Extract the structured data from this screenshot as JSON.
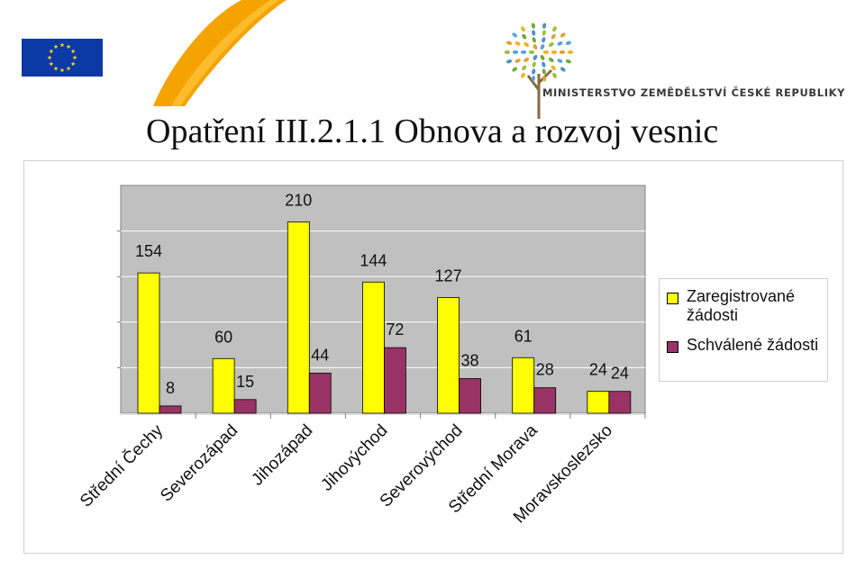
{
  "header": {
    "ministry_name": "MINISTERSTVO ZEMĚDĚLSTVÍ ČESKÉ REPUBLIKY",
    "slide_title": "Opatření III.2.1.1 Obnova a rozvoj vesnic"
  },
  "colors": {
    "series_registered": "#ffff00",
    "series_approved": "#993366",
    "plot_background": "#c0c0c0",
    "eu_flag": "#0b3aa6",
    "eu_stars": "#ffdd00",
    "swoosh": "#f5a300"
  },
  "chart_data": {
    "type": "bar",
    "categories": [
      "Střední Čechy",
      "Severozápad",
      "Jihozápad",
      "Jihovýchod",
      "Severovýchod",
      "Střední Morava",
      "Moravskoslezsko"
    ],
    "series": [
      {
        "name": "Zaregistrované žádosti",
        "values": [
          154,
          60,
          210,
          144,
          127,
          61,
          24
        ]
      },
      {
        "name": "Schválené žádosti",
        "values": [
          8,
          15,
          44,
          72,
          38,
          28,
          24
        ]
      }
    ],
    "data_labels": [
      [
        "154",
        "60",
        "210",
        "144",
        "127",
        "61",
        "24"
      ],
      [
        "8",
        "15",
        "44",
        "72",
        "38",
        "28",
        "24"
      ]
    ],
    "legend_position": "right",
    "grid": true,
    "ylim": [
      0,
      250
    ]
  }
}
